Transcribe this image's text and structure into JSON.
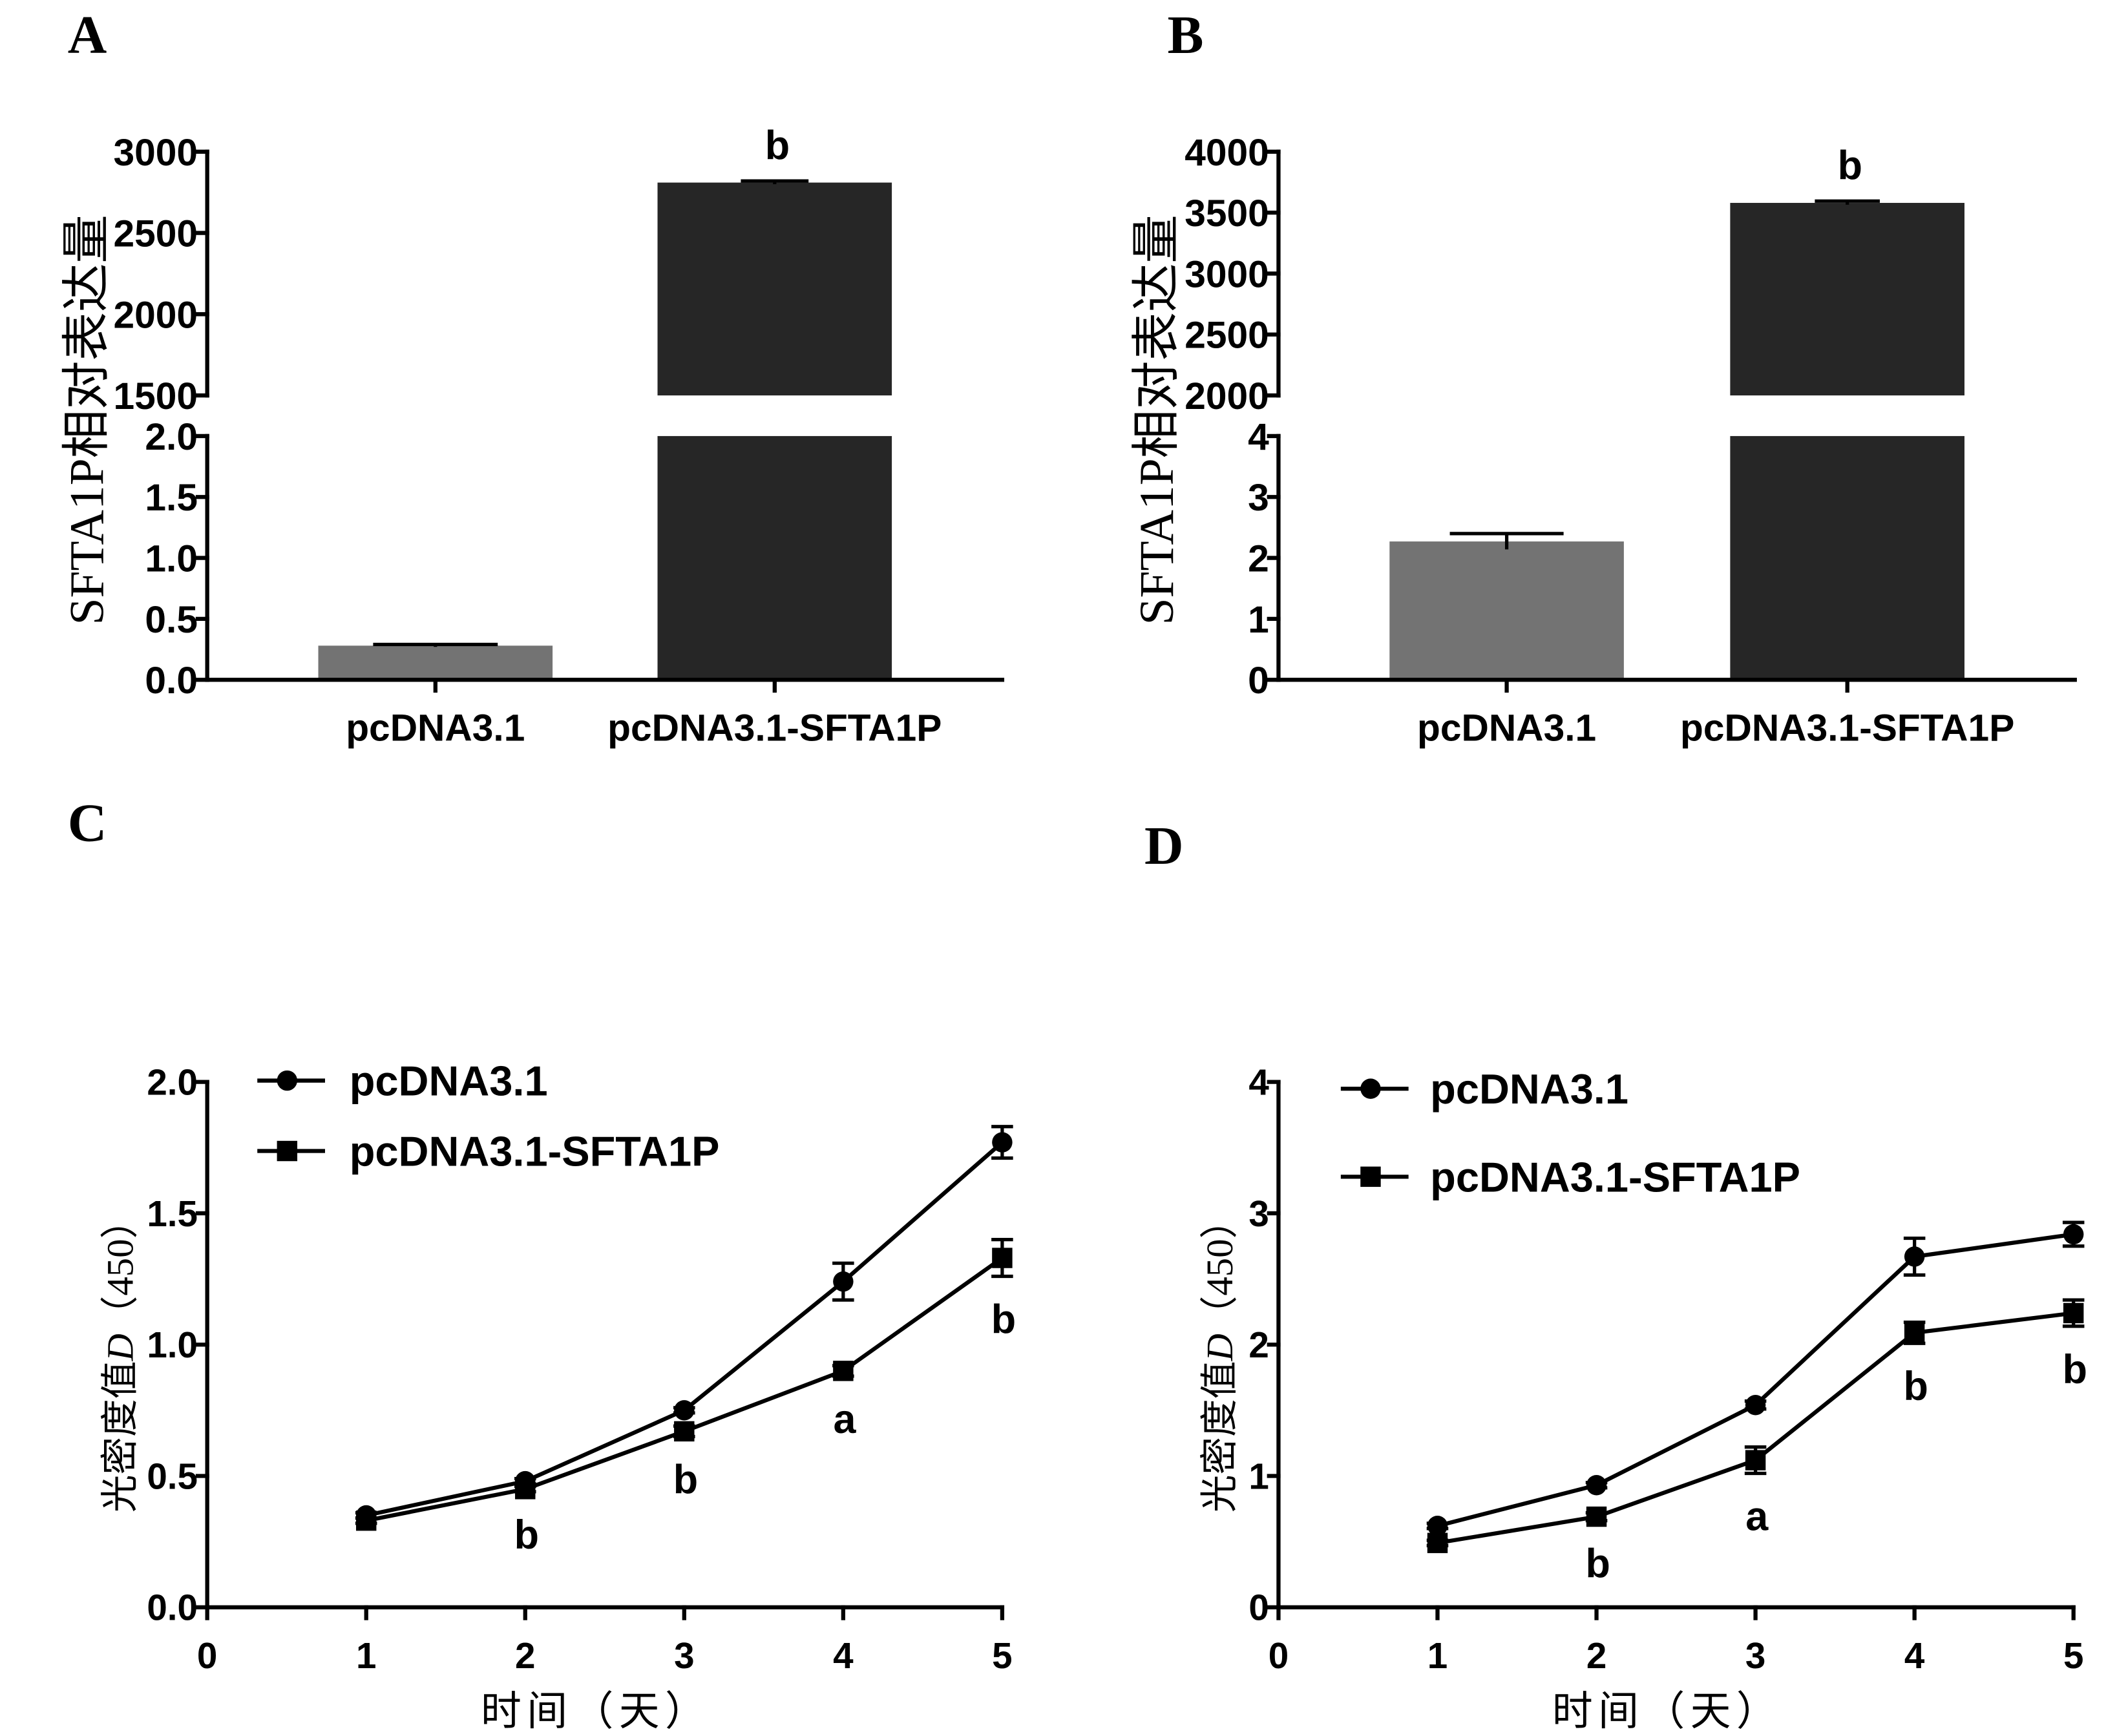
{
  "chart_data": [
    {
      "panel_label": "A",
      "type": "bar",
      "categories": [
        "pcDNA3.1",
        "pcDNA3.1-SFTA1P"
      ],
      "values": [
        0.28,
        2810
      ],
      "errors": [
        0.01,
        10
      ],
      "annotations": [
        "",
        "b"
      ],
      "ylabel": "SFTA1P相对表达量",
      "ylim_lower": [
        0,
        2.0
      ],
      "ylim_upper": [
        1500,
        3000
      ],
      "yticks_lower": [
        "0.0",
        "0.5",
        "1.0",
        "1.5",
        "2.0"
      ],
      "yticks_upper": [
        "1500",
        "2000",
        "2500",
        "3000"
      ],
      "bar_colors": [
        "#737373",
        "#262626"
      ],
      "legend": "none",
      "grid": false
    },
    {
      "panel_label": "B",
      "type": "bar",
      "categories": [
        "pcDNA3.1",
        "pcDNA3.1-SFTA1P"
      ],
      "values": [
        2.27,
        3580
      ],
      "errors": [
        0.13,
        15
      ],
      "annotations": [
        "",
        "b"
      ],
      "ylabel": "SFTA1P相对表达量",
      "ylim_lower": [
        0,
        4
      ],
      "ylim_upper": [
        2000,
        4000
      ],
      "yticks_lower": [
        "0",
        "1",
        "2",
        "3",
        "4"
      ],
      "yticks_upper": [
        "2000",
        "2500",
        "3000",
        "3500",
        "4000"
      ],
      "bar_colors": [
        "#737373",
        "#262626"
      ],
      "legend": "none",
      "grid": false
    },
    {
      "panel_label": "C",
      "type": "line",
      "x": [
        1,
        2,
        3,
        4,
        5
      ],
      "xlim": [
        0,
        5
      ],
      "ylim": [
        0,
        2.0
      ],
      "xticks": [
        "0",
        "1",
        "2",
        "3",
        "4",
        "5"
      ],
      "yticks": [
        "0.0",
        "0.5",
        "1.0",
        "1.5",
        "2.0"
      ],
      "xlabel": "时间（天）",
      "ylabel": "光密度值D（450）",
      "series": [
        {
          "name": "pcDNA3.1",
          "marker": "circle",
          "color": "#000000",
          "values": [
            0.35,
            0.48,
            0.75,
            1.24,
            1.77
          ],
          "errors": [
            0.01,
            0.01,
            0.01,
            0.07,
            0.06
          ]
        },
        {
          "name": "pcDNA3.1-SFTA1P",
          "marker": "square",
          "color": "#000000",
          "values": [
            0.33,
            0.45,
            0.67,
            0.9,
            1.33
          ],
          "errors": [
            0.01,
            0.01,
            0.02,
            0.02,
            0.07
          ]
        }
      ],
      "annotations": [
        "",
        "b",
        "b",
        "a",
        "b"
      ],
      "legend": "top-left",
      "grid": false
    },
    {
      "panel_label": "D",
      "type": "line",
      "x": [
        1,
        2,
        3,
        4,
        5
      ],
      "xlim": [
        0,
        5
      ],
      "ylim": [
        0,
        4
      ],
      "xticks": [
        "0",
        "1",
        "2",
        "3",
        "4",
        "5"
      ],
      "yticks": [
        "0",
        "1",
        "2",
        "3",
        "4"
      ],
      "xlabel": "时间（天）",
      "ylabel": "光密度值D（450）",
      "series": [
        {
          "name": "pcDNA3.1",
          "marker": "circle",
          "color": "#000000",
          "values": [
            0.62,
            0.93,
            1.54,
            2.67,
            2.84
          ],
          "errors": [
            0.02,
            0.02,
            0.03,
            0.14,
            0.09
          ]
        },
        {
          "name": "pcDNA3.1-SFTA1P",
          "marker": "square",
          "color": "#000000",
          "values": [
            0.49,
            0.69,
            1.12,
            2.09,
            2.24
          ],
          "errors": [
            0.02,
            0.03,
            0.1,
            0.08,
            0.1
          ]
        }
      ],
      "annotations": [
        "",
        "b",
        "a",
        "b",
        "b"
      ],
      "legend": "top-left",
      "grid": false
    }
  ]
}
